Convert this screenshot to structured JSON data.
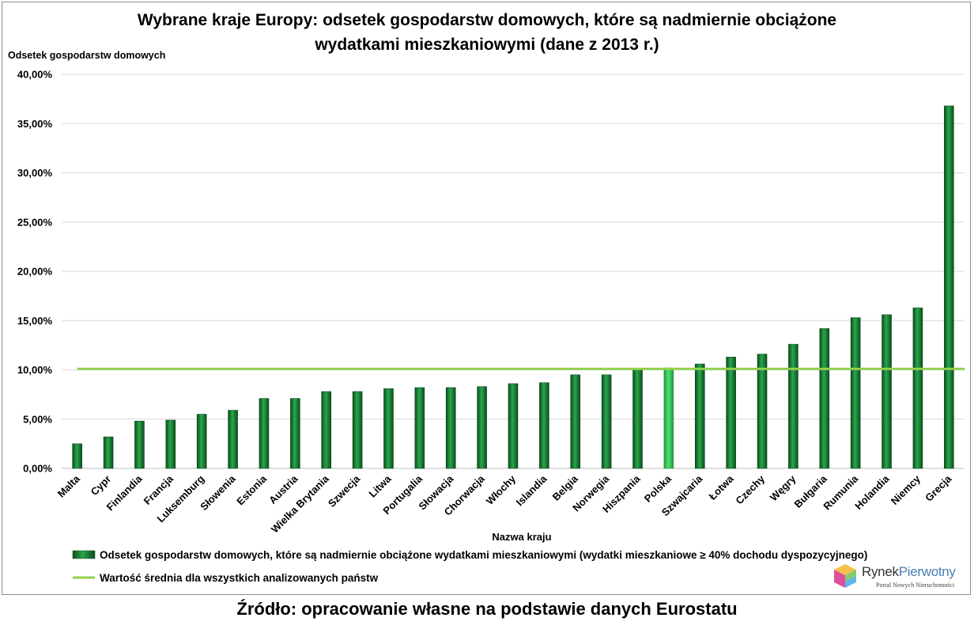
{
  "chart_data": {
    "type": "bar",
    "title_lines": [
      "Wybrane kraje Europy: odsetek gospodarstw domowych, które są nadmiernie obciążone",
      "wydatkami mieszkaniowymi (dane z 2013 r.)"
    ],
    "ylabel": "Odsetek gospodarstw  domowych",
    "xlabel": "Nazwa kraju",
    "ylim": [
      0,
      40
    ],
    "yticks": [
      "0,00%",
      "5,00%",
      "10,00%",
      "15,00%",
      "20,00%",
      "25,00%",
      "30,00%",
      "35,00%",
      "40,00%"
    ],
    "categories": [
      "Malta",
      "Cypr",
      "Finlandia",
      "Francja",
      "Luksemburg",
      "Słowenia",
      "Estonia",
      "Austria",
      "Wielka Brytania",
      "Szwecja",
      "Litwa",
      "Portugalia",
      "Słowacja",
      "Chorwacja",
      "Włochy",
      "Islandia",
      "Belgia",
      "Norwegia",
      "Hiszpania",
      "Polska",
      "Szwajcaria",
      "Łotwa",
      "Czechy",
      "Węgry",
      "Bułgaria",
      "Rumunia",
      "Holandia",
      "Niemcy",
      "Grecja"
    ],
    "series": [
      {
        "name": "Odsetek gospodarstw domowych, które są nadmiernie obciążone wydatkami mieszkaniowymi (wydatki mieszkaniowe ≥ 40% dochodu dyspozycyjnego)",
        "values": [
          2.5,
          3.2,
          4.8,
          4.9,
          5.5,
          5.9,
          7.1,
          7.1,
          7.8,
          7.8,
          8.1,
          8.2,
          8.2,
          8.3,
          8.6,
          8.7,
          9.5,
          9.5,
          10.1,
          10.2,
          10.6,
          11.3,
          11.6,
          12.6,
          14.2,
          15.3,
          15.6,
          16.3,
          36.8
        ]
      }
    ],
    "mean_line": {
      "name": "Wartość średnia dla wszystkich analizowanych państw",
      "value": 10.1
    },
    "highlight_category": "Polska",
    "colors": {
      "bar": "#1a7a35",
      "bar_highlight": "#2fc050",
      "mean_line": "#92d050",
      "grid": "#d9d9d9"
    },
    "grid": true,
    "legend_position": "bottom"
  },
  "source_caption": "Źródło: opracowanie własne na podstawie danych Eurostatu",
  "logo": {
    "name_part1": "Rynek",
    "name_part2": "Pierwotny",
    "tagline": "Portal Nowych Nieruchomości"
  }
}
